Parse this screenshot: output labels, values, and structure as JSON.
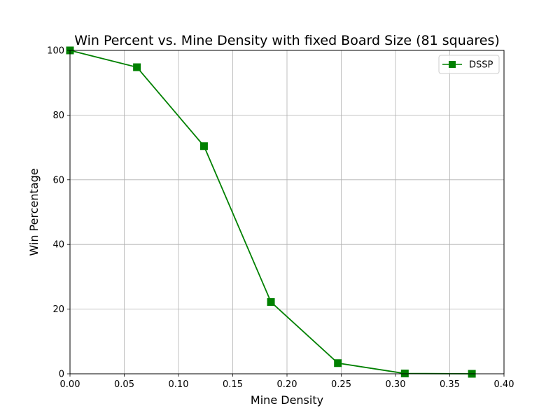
{
  "chart_data": {
    "type": "line",
    "title": "Win Percent vs. Mine Density with fixed Board Size (81 squares)",
    "xlabel": "Mine Density",
    "ylabel": "Win Percentage",
    "xlim": [
      0.0,
      0.4
    ],
    "ylim": [
      0,
      100
    ],
    "xticks": [
      0.0,
      0.05,
      0.1,
      0.15,
      0.2,
      0.25,
      0.3,
      0.35,
      0.4
    ],
    "xtick_labels": [
      "0.00",
      "0.05",
      "0.10",
      "0.15",
      "0.20",
      "0.25",
      "0.30",
      "0.35",
      "0.40"
    ],
    "yticks": [
      0,
      20,
      40,
      60,
      80,
      100
    ],
    "ytick_labels": [
      "0",
      "20",
      "40",
      "60",
      "80",
      "100"
    ],
    "grid": true,
    "legend_position": "top-right",
    "series": [
      {
        "name": "DSSP",
        "color": "#008000",
        "marker": "square",
        "x": [
          0.0,
          0.0617,
          0.1235,
          0.1852,
          0.2469,
          0.3086,
          0.3704
        ],
        "y": [
          100.0,
          94.8,
          70.4,
          22.2,
          3.3,
          0.1,
          0.0
        ]
      }
    ]
  }
}
